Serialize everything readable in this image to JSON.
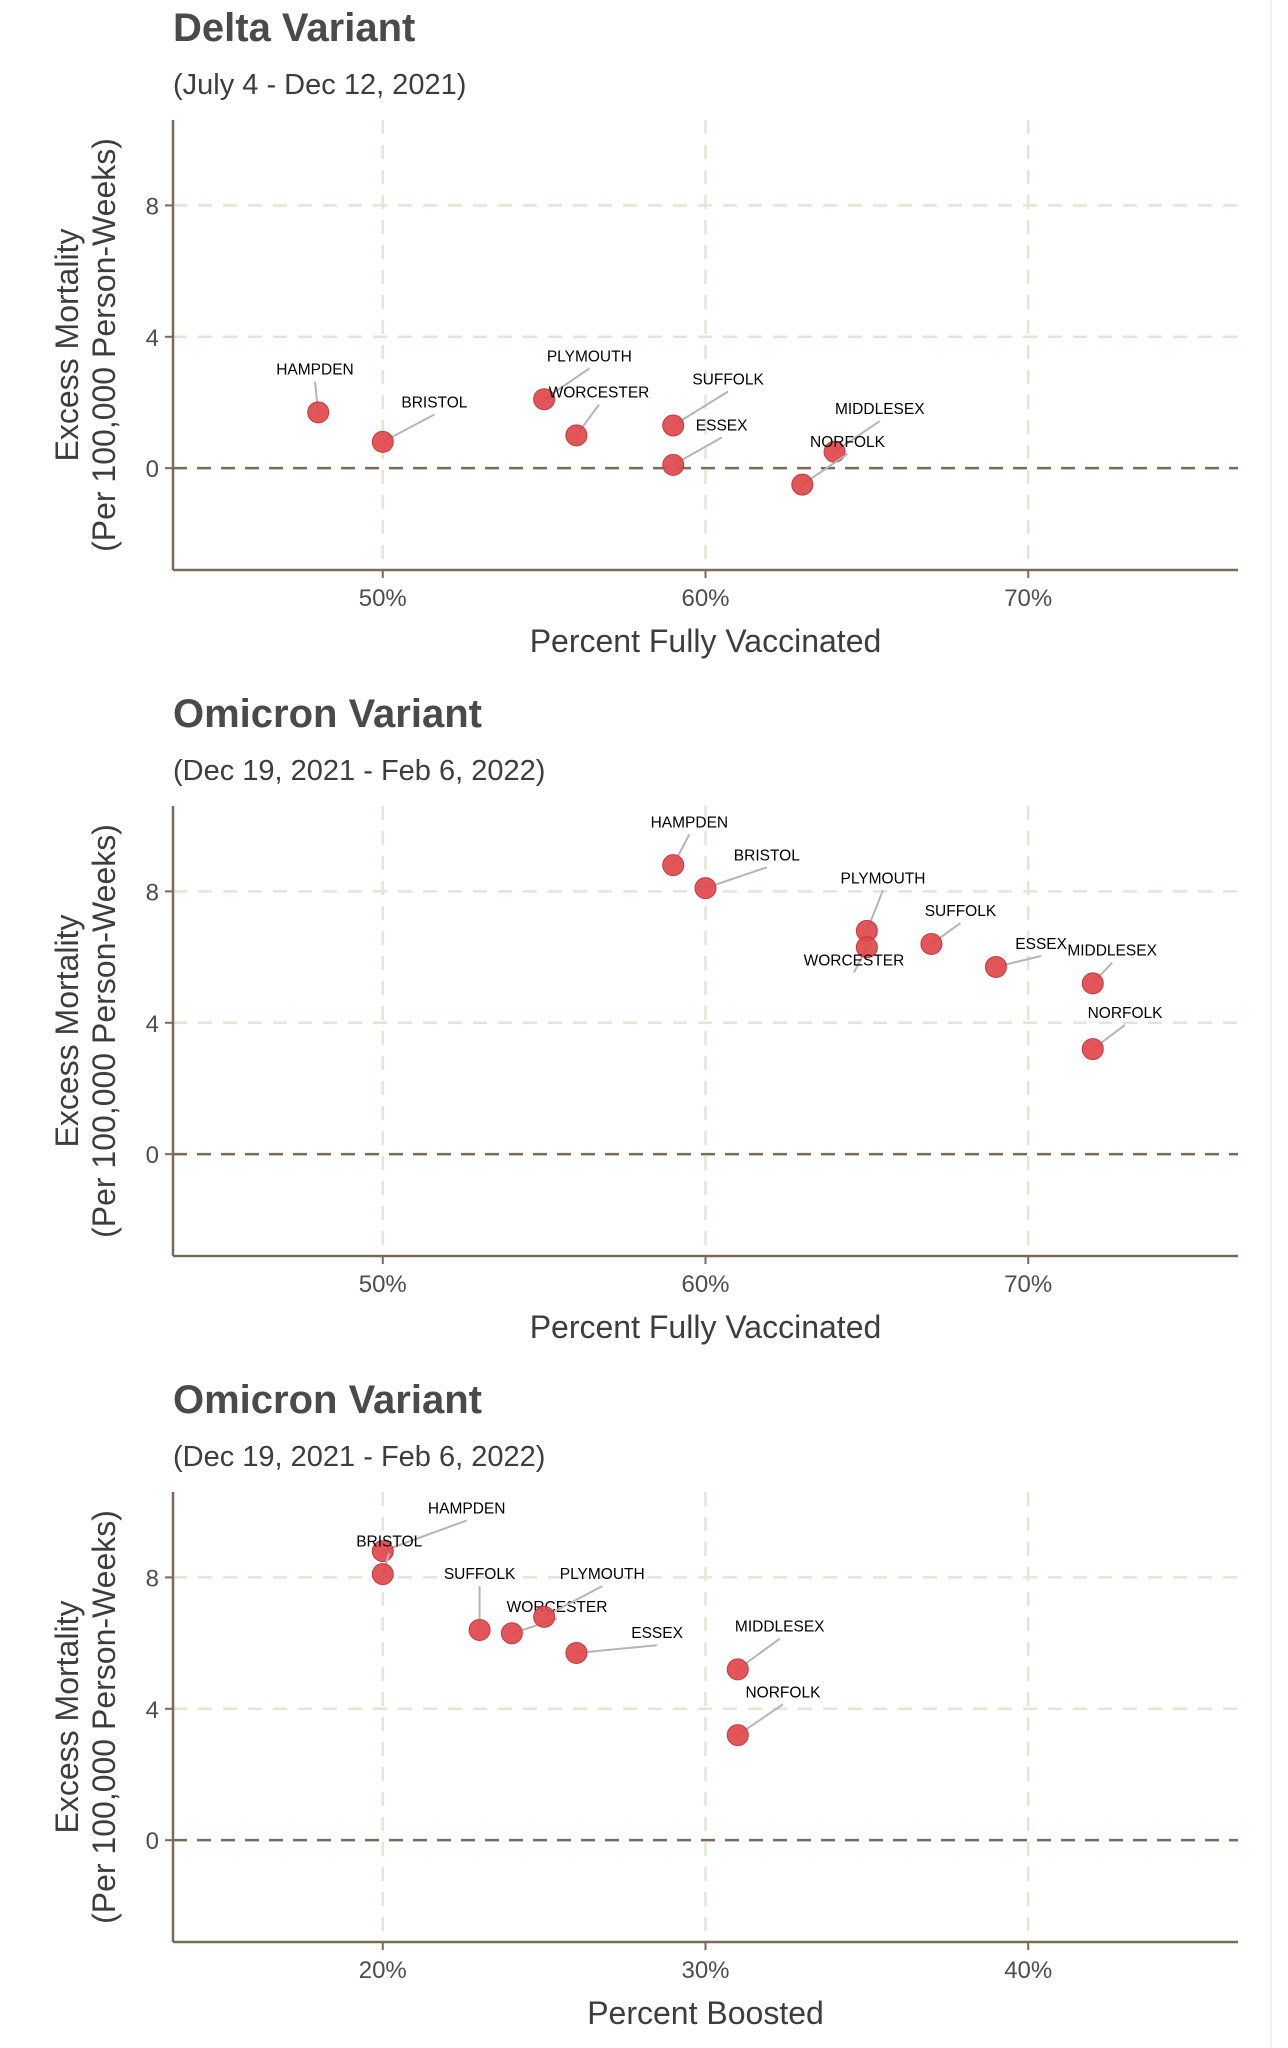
{
  "colors": {
    "point": "#e0484c",
    "grid": "#e9e3d6",
    "axis": "#7a6a56",
    "zero_line": "#7a6a56",
    "leader": "#b5b5b5"
  },
  "chart_data": [
    {
      "type": "scatter",
      "title": "Delta Variant",
      "subtitle": "(July 4 - Dec 12, 2021)",
      "xlabel": "Percent Fully Vaccinated",
      "ylabel": [
        "Excess Mortality",
        "(Per 100,000 Person-Weeks)"
      ],
      "x_ticks": [
        50,
        60,
        70
      ],
      "x_tick_labels": [
        "50%",
        "60%",
        "70%"
      ],
      "y_ticks": [
        0,
        4,
        8
      ],
      "y_tick_labels": [
        "0",
        "4",
        "8"
      ],
      "xlim": [
        43.5,
        76.5
      ],
      "ylim": [
        -3.1,
        10.6
      ],
      "reference_line_y": 0,
      "grid": true,
      "points": [
        {
          "label": "HAMPDEN",
          "x": 48,
          "y": 1.7,
          "lx": 47.9,
          "ly": 3.0
        },
        {
          "label": "BRISTOL",
          "x": 50,
          "y": 0.8,
          "lx": 51.6,
          "ly": 2.0
        },
        {
          "label": "PLYMOUTH",
          "x": 55,
          "y": 2.1,
          "lx": 56.4,
          "ly": 3.4
        },
        {
          "label": "WORCESTER",
          "x": 56,
          "y": 1.0,
          "lx": 56.7,
          "ly": 2.3
        },
        {
          "label": "SUFFOLK",
          "x": 59,
          "y": 1.3,
          "lx": 60.7,
          "ly": 2.7
        },
        {
          "label": "ESSEX",
          "x": 59,
          "y": 0.1,
          "lx": 60.5,
          "ly": 1.3
        },
        {
          "label": "MIDDLESEX",
          "x": 64,
          "y": 0.5,
          "lx": 65.4,
          "ly": 1.8
        },
        {
          "label": "NORFOLK",
          "x": 63,
          "y": -0.5,
          "lx": 64.4,
          "ly": 0.8
        }
      ]
    },
    {
      "type": "scatter",
      "title": "Omicron Variant",
      "subtitle": "(Dec 19, 2021 - Feb 6, 2022)",
      "xlabel": "Percent Fully Vaccinated",
      "ylabel": [
        "Excess Mortality",
        "(Per 100,000 Person-Weeks)"
      ],
      "x_ticks": [
        50,
        60,
        70
      ],
      "x_tick_labels": [
        "50%",
        "60%",
        "70%"
      ],
      "y_ticks": [
        0,
        4,
        8
      ],
      "y_tick_labels": [
        "0",
        "4",
        "8"
      ],
      "xlim": [
        43.5,
        76.5
      ],
      "ylim": [
        -3.1,
        10.6
      ],
      "reference_line_y": 0,
      "grid": true,
      "points": [
        {
          "label": "HAMPDEN",
          "x": 59,
          "y": 8.8,
          "lx": 59.5,
          "ly": 10.1
        },
        {
          "label": "BRISTOL",
          "x": 60,
          "y": 8.1,
          "lx": 61.9,
          "ly": 9.1
        },
        {
          "label": "PLYMOUTH",
          "x": 65,
          "y": 6.8,
          "lx": 65.5,
          "ly": 8.4
        },
        {
          "label": "WORCESTER",
          "x": 65,
          "y": 6.3,
          "lx": 64.6,
          "ly": 5.9
        },
        {
          "label": "SUFFOLK",
          "x": 67,
          "y": 6.4,
          "lx": 67.9,
          "ly": 7.4
        },
        {
          "label": "ESSEX",
          "x": 69,
          "y": 5.7,
          "lx": 70.4,
          "ly": 6.4
        },
        {
          "label": "MIDDLESEX",
          "x": 72,
          "y": 5.2,
          "lx": 72.6,
          "ly": 6.2
        },
        {
          "label": "NORFOLK",
          "x": 72,
          "y": 3.2,
          "lx": 73.0,
          "ly": 4.3
        }
      ]
    },
    {
      "type": "scatter",
      "title": "Omicron Variant",
      "subtitle": "(Dec 19, 2021 - Feb 6, 2022)",
      "xlabel": "Percent Boosted",
      "ylabel": [
        "Excess Mortality",
        "(Per 100,000 Person-Weeks)"
      ],
      "x_ticks": [
        20,
        30,
        40
      ],
      "x_tick_labels": [
        "20%",
        "30%",
        "40%"
      ],
      "y_ticks": [
        0,
        4,
        8
      ],
      "y_tick_labels": [
        "0",
        "4",
        "8"
      ],
      "xlim": [
        13.5,
        46.5
      ],
      "ylim": [
        -3.1,
        10.6
      ],
      "reference_line_y": 0,
      "grid": true,
      "points": [
        {
          "label": "HAMPDEN",
          "x": 20,
          "y": 8.8,
          "lx": 22.6,
          "ly": 10.1
        },
        {
          "label": "BRISTOL",
          "x": 20,
          "y": 8.1,
          "lx": 20.2,
          "ly": 9.1
        },
        {
          "label": "SUFFOLK",
          "x": 23,
          "y": 6.4,
          "lx": 23.0,
          "ly": 8.1
        },
        {
          "label": "WORCESTER",
          "x": 24,
          "y": 6.3,
          "lx": 25.4,
          "ly": 7.1
        },
        {
          "label": "PLYMOUTH",
          "x": 25,
          "y": 6.8,
          "lx": 26.8,
          "ly": 8.1
        },
        {
          "label": "ESSEX",
          "x": 26,
          "y": 5.7,
          "lx": 28.5,
          "ly": 6.3
        },
        {
          "label": "MIDDLESEX",
          "x": 31,
          "y": 5.2,
          "lx": 32.3,
          "ly": 6.5
        },
        {
          "label": "NORFOLK",
          "x": 31,
          "y": 3.2,
          "lx": 32.4,
          "ly": 4.5
        }
      ]
    }
  ]
}
